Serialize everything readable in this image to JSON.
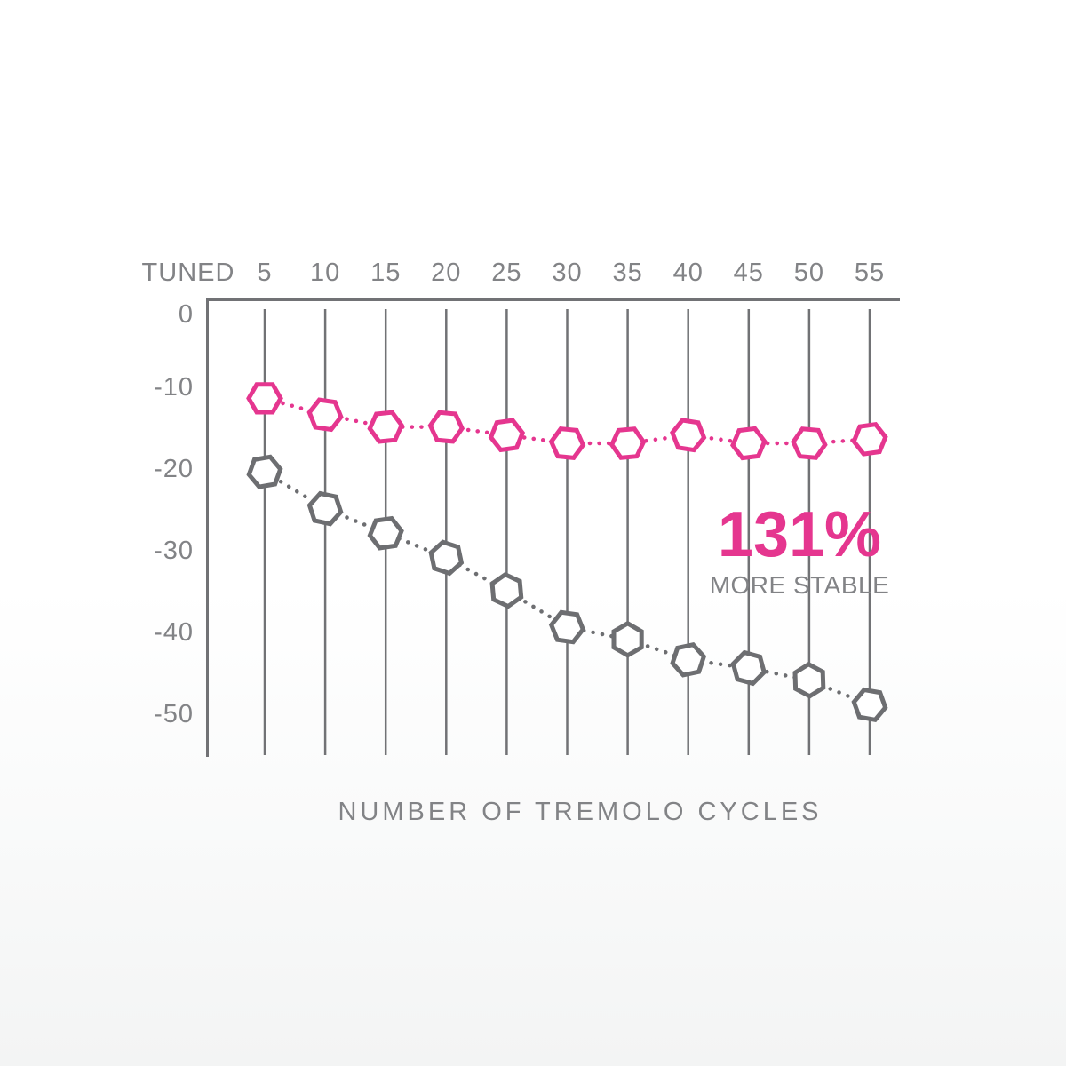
{
  "chart_data": {
    "type": "line",
    "x_tick_labels": [
      "TUNED",
      "5",
      "10",
      "15",
      "20",
      "25",
      "30",
      "35",
      "40",
      "45",
      "50",
      "55"
    ],
    "y_tick_labels": [
      "0",
      "-10",
      "-20",
      "-30",
      "-40",
      "-50"
    ],
    "x": [
      5,
      10,
      15,
      20,
      25,
      30,
      35,
      40,
      45,
      50,
      55
    ],
    "xlabel": "NUMBER OF TREMOLO CYCLES",
    "ylabel": "",
    "ylim": [
      -55,
      0
    ],
    "grid": "vertical-gridlines-only",
    "legend": "none",
    "marker": "hexagon-outline",
    "line_style": "dotted",
    "series": [
      {
        "name": "tuned-stable-pink",
        "color": "#e5368f",
        "values": [
          -12,
          -14,
          -15.5,
          -15.5,
          -16.5,
          -17.5,
          -17.5,
          -16.5,
          -17.5,
          -17.5,
          -17
        ]
      },
      {
        "name": "standard-drift-gray",
        "color": "#6d6e71",
        "values": [
          -21,
          -25.5,
          -28.5,
          -31.5,
          -35.5,
          -40,
          -41.5,
          -44,
          -45,
          -46.5,
          -49.5
        ]
      }
    ],
    "annotation": {
      "value": "131%",
      "label": "MORE STABLE",
      "color": "#e5368f"
    }
  },
  "colors": {
    "accent_pink": "#e5368f",
    "marker_gray": "#6d6e71",
    "axis_gray": "#717275",
    "label_gray": "#828386"
  }
}
